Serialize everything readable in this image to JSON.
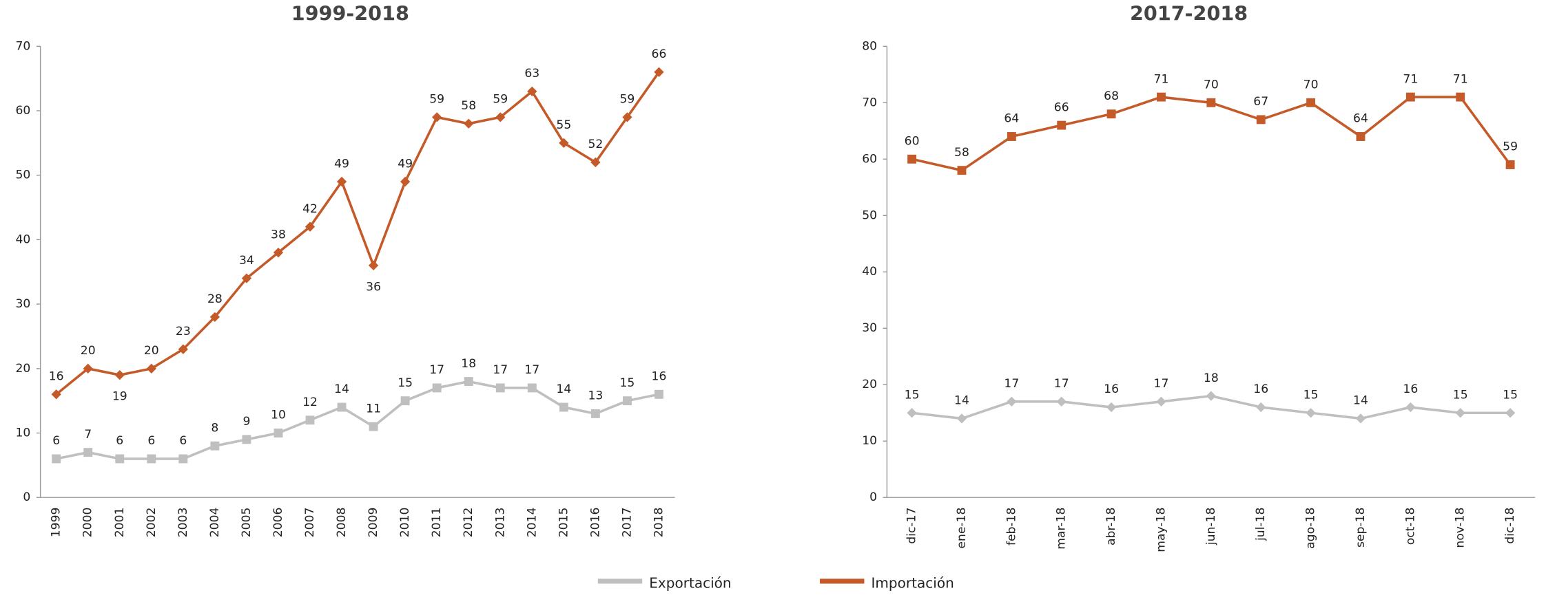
{
  "chart_data": [
    {
      "type": "line",
      "title": "1999-2018",
      "categories": [
        "1999",
        "2000",
        "2001",
        "2002",
        "2003",
        "2004",
        "2005",
        "2006",
        "2007",
        "2008",
        "2009",
        "2010",
        "2011",
        "2012",
        "2013",
        "2014",
        "2015",
        "2016",
        "2017",
        "2018"
      ],
      "series": [
        {
          "name": "Exportación",
          "color": "#bfbfbf",
          "marker": "square",
          "values": [
            6,
            7,
            6,
            6,
            6,
            8,
            9,
            10,
            12,
            14,
            11,
            15,
            17,
            18,
            17,
            17,
            14,
            13,
            15,
            16
          ]
        },
        {
          "name": "Importación",
          "color": "#c55a29",
          "marker": "diamond",
          "values": [
            16,
            20,
            19,
            20,
            23,
            28,
            34,
            38,
            42,
            49,
            36,
            49,
            59,
            58,
            59,
            63,
            55,
            52,
            59,
            66
          ]
        }
      ],
      "ylim": [
        0,
        70
      ],
      "yticks": [
        0,
        10,
        20,
        30,
        40,
        50,
        60,
        70
      ]
    },
    {
      "type": "line",
      "title": "2017-2018",
      "categories": [
        "dic-17",
        "ene-18",
        "feb-18",
        "mar-18",
        "abr-18",
        "may-18",
        "jun-18",
        "jul-18",
        "ago-18",
        "sep-18",
        "oct-18",
        "nov-18",
        "dic-18"
      ],
      "series": [
        {
          "color": "#bfbfbf",
          "marker": "diamond",
          "values": [
            15,
            14,
            17,
            17,
            16,
            17,
            18,
            16,
            15,
            14,
            16,
            15,
            15
          ]
        },
        {
          "color": "#c55a29",
          "marker": "square",
          "values": [
            60,
            58,
            64,
            66,
            68,
            71,
            70,
            67,
            70,
            64,
            71,
            71,
            59
          ]
        }
      ],
      "ylim": [
        0,
        80
      ],
      "yticks": [
        0,
        10,
        20,
        30,
        40,
        50,
        60,
        70,
        80
      ]
    }
  ]
}
